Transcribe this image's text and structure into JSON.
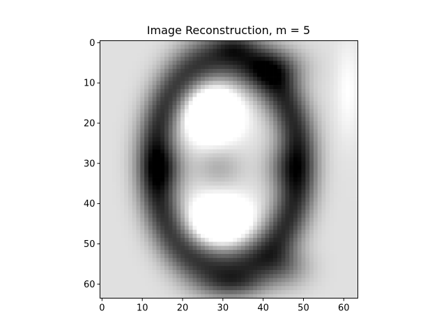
{
  "chart_data": {
    "type": "heatmap",
    "title": "Image Reconstruction, m = 5",
    "xlabel": "",
    "ylabel": "",
    "image_size": [
      64,
      64
    ],
    "colormap": "gray_r",
    "value_range": [
      0,
      1
    ],
    "xlim": [
      -0.5,
      63.5
    ],
    "ylim": [
      63.5,
      -0.5
    ],
    "xticks": [
      0,
      10,
      20,
      30,
      40,
      50,
      60
    ],
    "yticks": [
      0,
      10,
      20,
      30,
      40,
      50,
      60
    ],
    "grid": false,
    "legend": "none",
    "intensity_components": {
      "note_free": true,
      "base_ring": {
        "cx": 31,
        "cy": 30,
        "rx": 18,
        "ry": 26,
        "width": 7,
        "value": 0.72
      },
      "waist_left": {
        "cx": 16,
        "cy": 31,
        "rx": 5,
        "ry": 6,
        "value": 0.35
      },
      "waist_right": {
        "cx": 45,
        "cy": 31,
        "rx": 5,
        "ry": 6,
        "value": 0.3
      },
      "dark_top_right": {
        "cx": 44,
        "cy": 6,
        "rx": 7,
        "ry": 5,
        "value": 0.35
      },
      "dark_bottom_right": {
        "cx": 46,
        "cy": 56,
        "rx": 6,
        "ry": 5,
        "value": 0.3
      },
      "dark_bottom_center": {
        "cx": 33,
        "cy": 60,
        "rx": 8,
        "ry": 3,
        "value": 0.2
      },
      "dark_top_center": {
        "cx": 33,
        "cy": 1,
        "rx": 5,
        "ry": 3,
        "value": 0.2
      },
      "hole_top": {
        "cx": 27,
        "cy": 17,
        "rx": 7,
        "ry": 7,
        "value": -0.7
      },
      "hole_bottom": {
        "cx": 29,
        "cy": 45,
        "rx": 8,
        "ry": 6,
        "value": -0.7
      },
      "middle_gray": {
        "cx": 29,
        "cy": 31,
        "rx": 6,
        "ry": 5,
        "value": 0.2
      },
      "background": 0.12,
      "right_edge_light": {
        "cx": 61,
        "cy": 12,
        "rx": 3,
        "ry": 12,
        "value": -0.12
      }
    }
  }
}
